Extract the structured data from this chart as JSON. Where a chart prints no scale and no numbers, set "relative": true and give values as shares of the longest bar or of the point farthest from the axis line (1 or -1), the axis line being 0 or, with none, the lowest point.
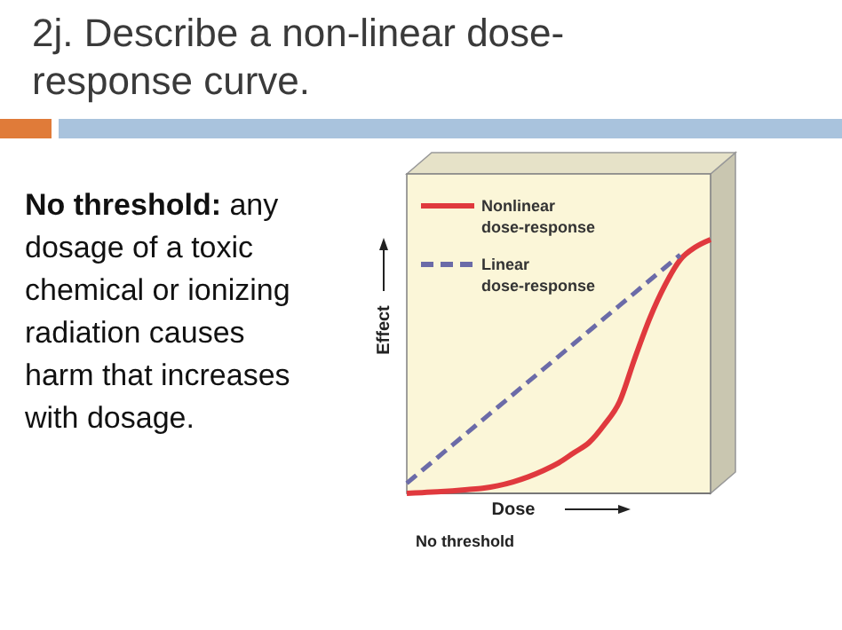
{
  "chart_data": {
    "type": "line",
    "title": "2j. Describe a non-linear dose-response curve.",
    "xlabel": "Dose",
    "ylabel": "Effect",
    "relative": true,
    "legend": "top left",
    "annotations": [
      "No threshold: any dosage of a toxic chemical or ionizing radiation causes harm that increases with dosage.",
      "No threshold"
    ],
    "categories": [
      null,
      null,
      null,
      null,
      null,
      null,
      null,
      null,
      null,
      null,
      null,
      null,
      null,
      null,
      null,
      null,
      null,
      null,
      null,
      null,
      null
    ],
    "series": [
      {
        "name": "Nonlinear dose-response",
        "color": "#e0393e",
        "line_style": "solid",
        "values": [
          0,
          0.003,
          0.006,
          0.01,
          0.015,
          0.02,
          0.03,
          0.045,
          0.065,
          0.09,
          0.12,
          0.16,
          0.2,
          0.27,
          0.36,
          0.53,
          0.69,
          0.82,
          0.92,
          0.97,
          1
        ]
      },
      {
        "name": "Linear dose-response",
        "color": "#6b6ba8",
        "line_style": "dashed",
        "values": [
          0.04,
          0.09,
          0.14,
          0.19,
          0.24,
          0.29,
          0.34,
          0.39,
          0.44,
          0.49,
          0.54,
          0.59,
          0.64,
          0.69,
          0.74,
          0.79,
          0.84,
          0.89,
          0.94,
          null,
          null
        ]
      }
    ]
  }
}
